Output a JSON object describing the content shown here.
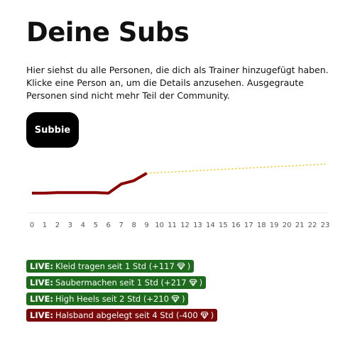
{
  "header": {
    "title": "Deine Subs",
    "description": "Hier siehst du alle Personen, die dich als Trainer hinzugefügt haben. Klicke eine Person an, um die Details anzusehen. Ausgegraute Personen sind nicht mehr Teil der Community."
  },
  "button": {
    "label": "Subbie"
  },
  "chart_data": {
    "type": "line",
    "xlim": [
      0,
      23
    ],
    "xticks": [
      0,
      1,
      2,
      3,
      4,
      5,
      6,
      7,
      8,
      9,
      10,
      11,
      12,
      13,
      14,
      15,
      16,
      17,
      18,
      19,
      20,
      21,
      22,
      23
    ],
    "ylim": [
      0,
      100
    ],
    "series": [
      {
        "color": "#8b0000",
        "x": [
          0,
          1,
          2,
          3,
          4,
          5,
          6,
          7,
          8,
          9
        ],
        "values": [
          35,
          35,
          36,
          36,
          36,
          36,
          35,
          51,
          57,
          70
        ]
      },
      {
        "color": "#f0c419",
        "x": [
          9,
          23
        ],
        "values": [
          70,
          86
        ],
        "dashed": true
      }
    ]
  },
  "badges": [
    {
      "label": "LIVE:",
      "text": "Kleid tragen seit 1 Std (+117",
      "suffix": ")",
      "color": "#1e6b1e"
    },
    {
      "label": "LIVE:",
      "text": "Saubermachen seit 1 Std (+217",
      "suffix": ")",
      "color": "#1e6b1e"
    },
    {
      "label": "LIVE:",
      "text": "High Heels seit 2 Std (+210",
      "suffix": ")",
      "color": "#1e6b1e"
    },
    {
      "label": "LIVE:",
      "text": "Halsband abgelegt seit 4 Std (-400",
      "suffix": ")",
      "color": "#7a0a0a"
    }
  ]
}
